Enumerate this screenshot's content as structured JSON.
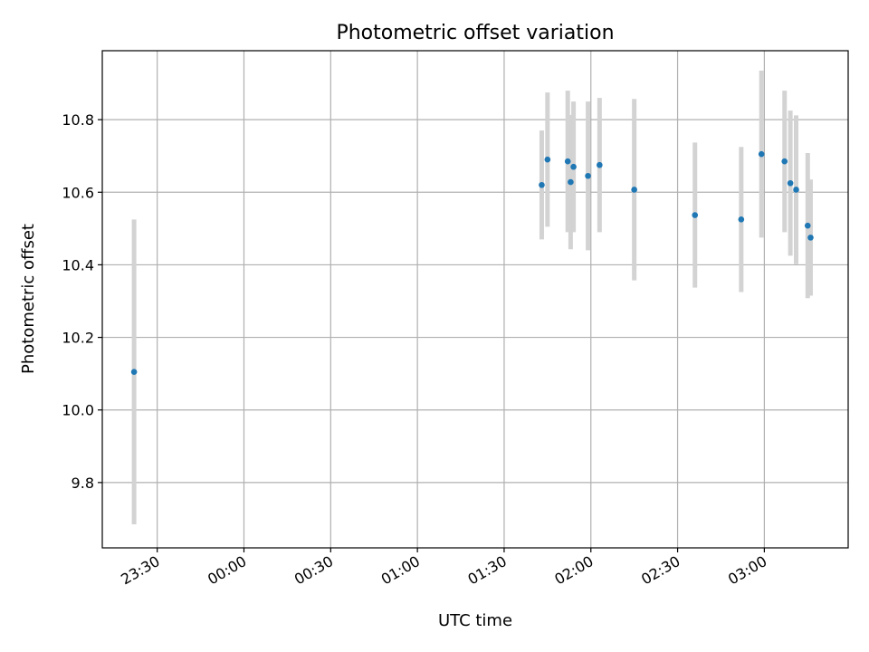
{
  "chart_data": {
    "type": "scatter",
    "title": "Photometric offset variation",
    "xlabel": "UTC time",
    "ylabel": "Photometric offset",
    "x_axis_type": "time",
    "x_tick_labels": [
      "23:30",
      "00:00",
      "00:30",
      "01:00",
      "01:30",
      "02:00",
      "02:30",
      "03:00"
    ],
    "x_tick_times": [
      "23:30",
      "00:00",
      "00:30",
      "01:00",
      "01:30",
      "02:00",
      "02:30",
      "03:00"
    ],
    "xlim": [
      "23:11",
      "03:29"
    ],
    "y_ticks": [
      9.8,
      10.0,
      10.2,
      10.4,
      10.6,
      10.8
    ],
    "ylim": [
      9.62,
      10.99
    ],
    "grid": true,
    "marker_color": "#1f77b4",
    "errorbar_color": "#d3d3d3",
    "points": [
      {
        "x": "23:22",
        "y": 10.105,
        "err": 0.42
      },
      {
        "x": "01:43",
        "y": 10.62,
        "err": 0.15
      },
      {
        "x": "01:45",
        "y": 10.69,
        "err": 0.185
      },
      {
        "x": "01:52",
        "y": 10.685,
        "err": 0.195
      },
      {
        "x": "01:53",
        "y": 10.628,
        "err": 0.185
      },
      {
        "x": "01:54",
        "y": 10.67,
        "err": 0.18
      },
      {
        "x": "01:59",
        "y": 10.645,
        "err": 0.205
      },
      {
        "x": "02:03",
        "y": 10.675,
        "err": 0.185
      },
      {
        "x": "02:15",
        "y": 10.607,
        "err": 0.25
      },
      {
        "x": "02:36",
        "y": 10.537,
        "err": 0.2
      },
      {
        "x": "02:52",
        "y": 10.525,
        "err": 0.2
      },
      {
        "x": "02:59",
        "y": 10.705,
        "err": 0.23
      },
      {
        "x": "03:07",
        "y": 10.685,
        "err": 0.195
      },
      {
        "x": "03:09",
        "y": 10.625,
        "err": 0.2
      },
      {
        "x": "03:11",
        "y": 10.607,
        "err": 0.205
      },
      {
        "x": "03:15",
        "y": 10.508,
        "err": 0.2
      },
      {
        "x": "03:16",
        "y": 10.475,
        "err": 0.16
      }
    ]
  }
}
